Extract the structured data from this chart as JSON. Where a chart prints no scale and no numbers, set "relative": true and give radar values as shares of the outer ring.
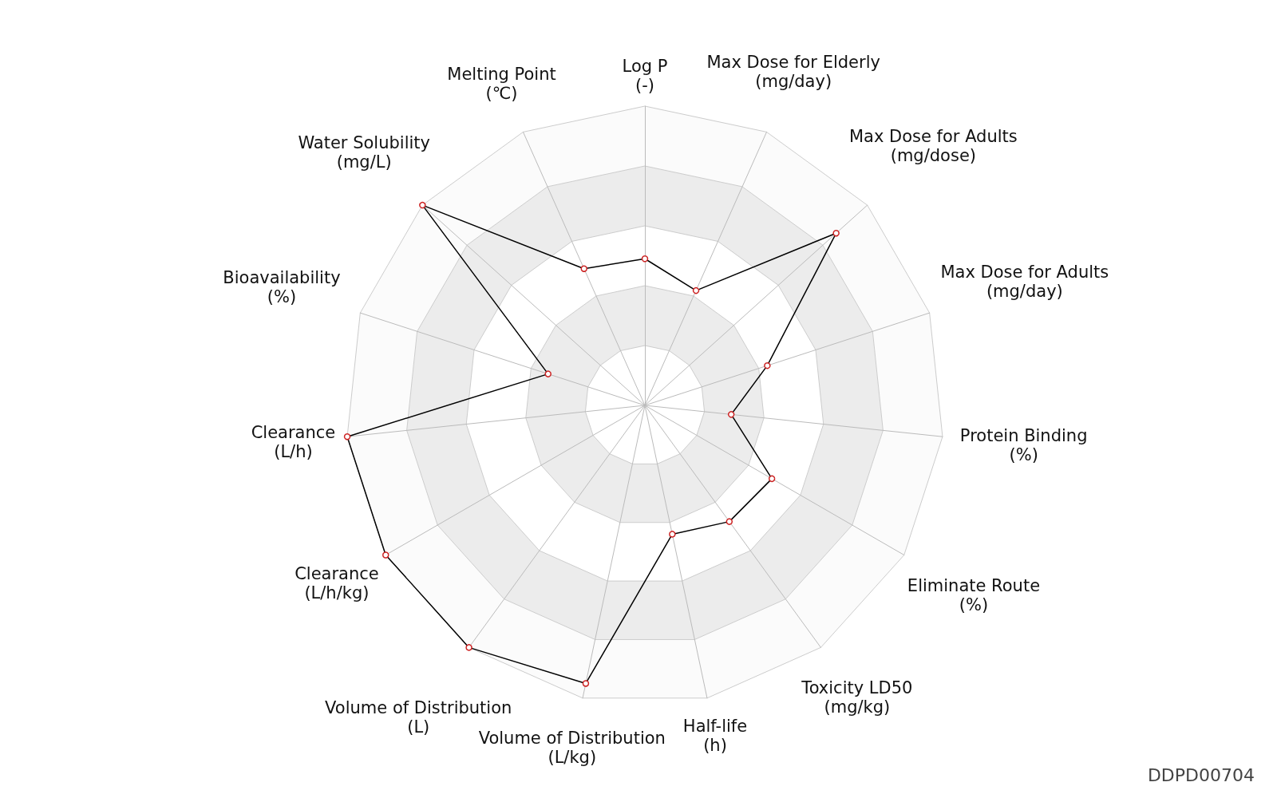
{
  "chart_data": {
    "type": "radar",
    "relative": true,
    "categories": [
      "Log P\n(-)",
      "Max Dose for Elderly\n(mg/day)",
      "Max Dose for Adults\n(mg/dose)",
      "Max Dose for Adults\n(mg/day)",
      "Protein Binding\n(%)",
      "Eliminate Route\n(%)",
      "Toxicity LD50\n(mg/kg)",
      "Half-life\n(h)",
      "Volume of Distribution\n(L/kg)",
      "Volume of Distribution\n(L)",
      "Clearance\n(L/h/kg)",
      "Clearance\n(L/h)",
      "Bioavailability\n(%)",
      "Water Solubility\n(mg/L)",
      "Melting Point\n(℃)"
    ],
    "series": [
      {
        "color": "#000000",
        "values": [
          0.49,
          0.42,
          0.86,
          0.43,
          0.29,
          0.49,
          0.48,
          0.44,
          0.95,
          1.0,
          1.0,
          1.0,
          0.34,
          1.0,
          0.5
        ]
      }
    ],
    "marker": "circle",
    "annotations": [
      "DDPD00704"
    ]
  }
}
